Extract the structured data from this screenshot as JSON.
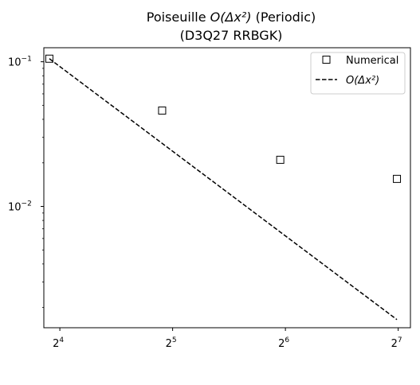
{
  "chart_data": {
    "type": "scatter",
    "title_line1_main": "Poiseuille ",
    "title_line1_math": "O(Δx²)",
    "title_line1_suffix": " (Periodic)",
    "title_line2": "(D3Q27 RRBGK)",
    "x_scale": "log2",
    "y_scale": "log10",
    "x_ticks": [
      {
        "base": "2",
        "exp": "4",
        "value": 16
      },
      {
        "base": "2",
        "exp": "5",
        "value": 32
      },
      {
        "base": "2",
        "exp": "6",
        "value": 64
      },
      {
        "base": "2",
        "exp": "7",
        "value": 128
      }
    ],
    "y_ticks": [
      {
        "base": "10",
        "exp": "−1",
        "value": 0.1
      },
      {
        "base": "10",
        "exp": "−2",
        "value": 0.01
      }
    ],
    "xlim": [
      14.5,
      138
    ],
    "ylim": [
      0.00145,
      0.125
    ],
    "grid": false,
    "legend_position": "top-right",
    "series": [
      {
        "name": "Numerical",
        "style": "markers",
        "marker": "open-square",
        "color": "#000000",
        "x": [
          15,
          30,
          62,
          127
        ],
        "y": [
          0.105,
          0.046,
          0.021,
          0.0155
        ]
      },
      {
        "name": "O(Δx²)",
        "style": "dashed-line",
        "color": "#000000",
        "x": [
          15,
          127
        ],
        "y": [
          0.105,
          0.00165
        ]
      }
    ]
  }
}
